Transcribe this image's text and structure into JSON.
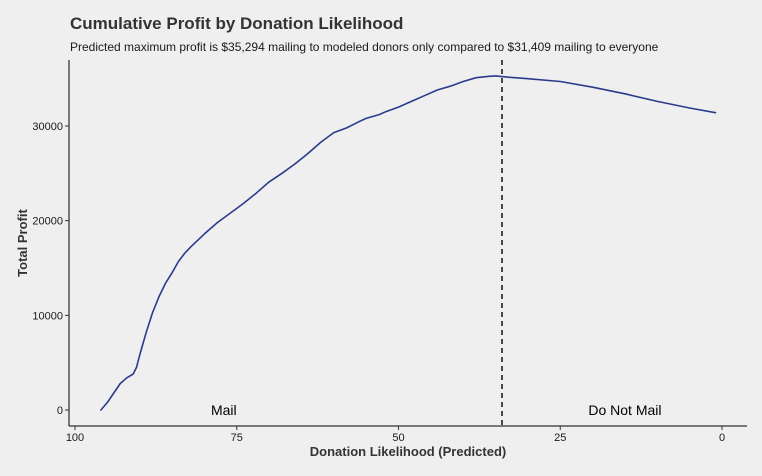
{
  "chart_data": {
    "type": "line",
    "title": "Cumulative Profit by Donation Likelihood",
    "subtitle": "Predicted maximum profit is $35,294 mailing to modeled donors only compared to $31,409 mailing to everyone",
    "xlabel": "Donation Likelihood (Predicted)",
    "ylabel": "Total Profit",
    "x_reversed": true,
    "xlim": [
      100,
      0
    ],
    "ylim": [
      0,
      36000
    ],
    "x_ticks": [
      "100",
      "75",
      "50",
      "25",
      "0"
    ],
    "y_ticks": [
      "0",
      "10000",
      "20000",
      "30000"
    ],
    "grid": false,
    "series": [
      {
        "color": "#2b3b8c",
        "x": [
          96,
          95,
          94,
          93,
          92,
          91,
          90.5,
          90,
          89,
          88,
          87,
          86,
          85,
          84,
          83,
          82,
          80,
          78,
          76,
          74,
          72,
          70,
          68,
          66,
          64,
          62,
          60,
          58,
          56,
          55,
          53,
          52,
          50,
          48,
          46,
          44,
          42,
          40,
          38,
          36,
          35,
          33,
          30,
          25,
          20,
          15,
          10,
          5,
          1
        ],
        "y": [
          0,
          800,
          1800,
          2800,
          3400,
          3800,
          4500,
          5800,
          8200,
          10300,
          12000,
          13400,
          14500,
          15700,
          16600,
          17300,
          18600,
          19800,
          20800,
          21800,
          22900,
          24100,
          25000,
          26000,
          27100,
          28300,
          29300,
          29800,
          30500,
          30800,
          31200,
          31500,
          32000,
          32600,
          33200,
          33800,
          34200,
          34700,
          35100,
          35250,
          35294,
          35150,
          35000,
          34700,
          34100,
          33400,
          32600,
          31900,
          31409
        ]
      }
    ],
    "reference_line": {
      "x": 34,
      "style": "dashed",
      "color": "#000000"
    },
    "annotations": [
      {
        "text": "Mail",
        "x": 77,
        "y": 0
      },
      {
        "text": "Do Not Mail",
        "x": 15,
        "y": 0
      }
    ]
  }
}
